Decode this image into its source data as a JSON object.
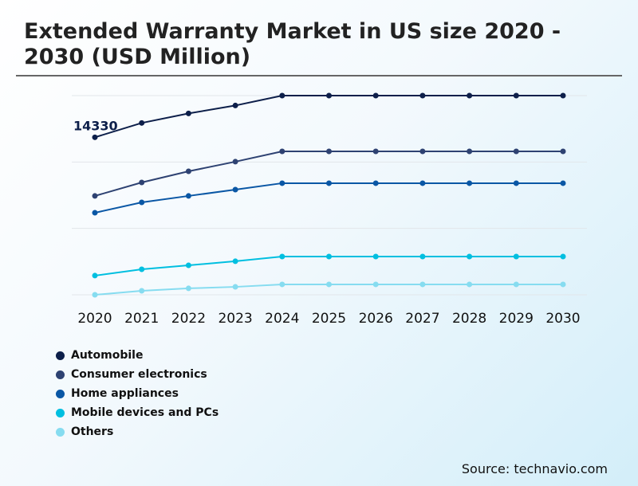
{
  "title": "Extended Warranty Market in US size 2020 - 2030 (USD Million)",
  "source": "Source: technavio.com",
  "chart_data": {
    "type": "line",
    "title": "Extended Warranty Market in US size 2020 - 2030 (USD Million)",
    "x": [
      "2020",
      "2021",
      "2022",
      "2023",
      "2024",
      "2025",
      "2026",
      "2027",
      "2028",
      "2029",
      "2030"
    ],
    "ylim": [
      1600,
      17700
    ],
    "grid": true,
    "legend_placement": "bottom-left",
    "annotation": {
      "series": "Automobile",
      "x": "2020",
      "label": "14330"
    },
    "series": [
      {
        "name": "Automobile",
        "color": "#0d1f4a",
        "values": [
          14330,
          15490,
          16260,
          16900,
          17700,
          17700,
          17700,
          17700,
          17700,
          17700,
          17700
        ]
      },
      {
        "name": "Consumer electronics",
        "color": "#2e4272",
        "values": [
          9590,
          10680,
          11580,
          12360,
          13190,
          13190,
          13190,
          13190,
          13190,
          13190,
          13190
        ]
      },
      {
        "name": "Home appliances",
        "color": "#0a57a5",
        "values": [
          8230,
          9070,
          9590,
          10100,
          10620,
          10620,
          10620,
          10620,
          10620,
          10620,
          10620
        ]
      },
      {
        "name": "Mobile devices and PCs",
        "color": "#00bfe0",
        "values": [
          3150,
          3660,
          3980,
          4310,
          4690,
          4690,
          4690,
          4690,
          4690,
          4690,
          4690
        ]
      },
      {
        "name": "Others",
        "color": "#86dcf0",
        "values": [
          1600,
          1920,
          2120,
          2240,
          2440,
          2440,
          2440,
          2440,
          2440,
          2440,
          2440
        ]
      }
    ]
  }
}
